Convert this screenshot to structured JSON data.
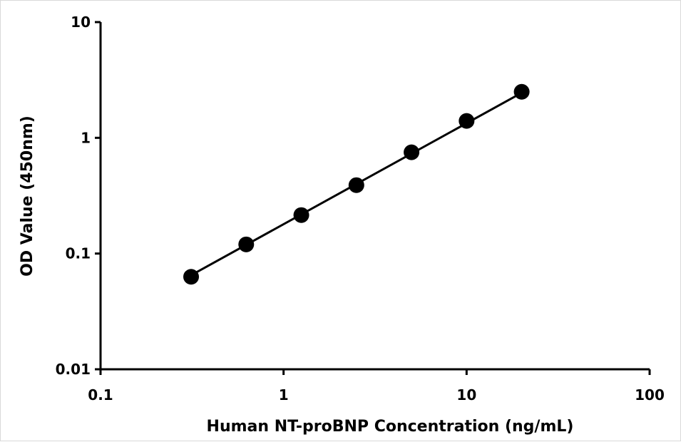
{
  "chart_data": {
    "type": "scatter",
    "title": "",
    "xlabel": "Human NT-proBNP Concentration (ng/mL)",
    "ylabel": "OD Value (450nm)",
    "xscale": "log",
    "yscale": "log",
    "xlim": [
      0.1,
      100
    ],
    "ylim": [
      0.01,
      10
    ],
    "xticks": [
      0.1,
      1,
      10,
      100
    ],
    "xtick_labels": [
      "0.1",
      "1",
      "10",
      "100"
    ],
    "yticks": [
      0.01,
      0.1,
      1,
      10
    ],
    "ytick_labels": [
      "0.01",
      "0.1",
      "1",
      "10"
    ],
    "grid": false,
    "legend": "none",
    "marker_color": "#000000",
    "line_color": "#000000",
    "series": [
      {
        "x": [
          0.3125,
          0.625,
          1.25,
          2.5,
          5,
          10,
          20
        ],
        "y": [
          0.063,
          0.12,
          0.215,
          0.39,
          0.75,
          1.4,
          2.5
        ]
      }
    ],
    "fit_line": {
      "x": [
        0.3125,
        20
      ],
      "y": [
        0.065,
        2.45
      ]
    }
  }
}
